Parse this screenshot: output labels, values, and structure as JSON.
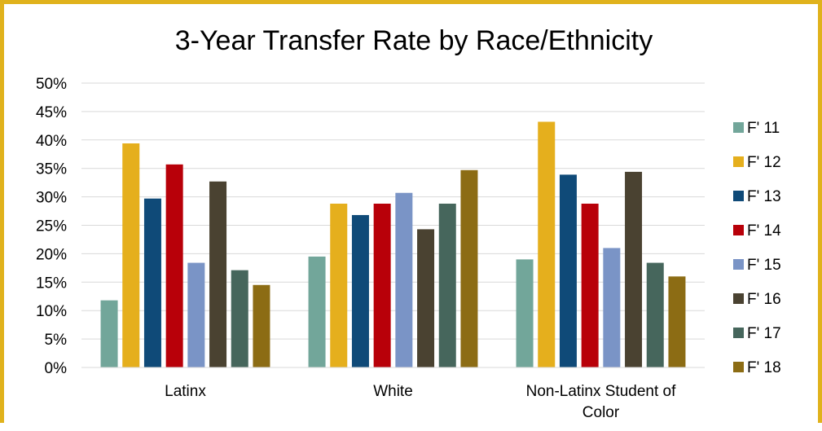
{
  "chart_data": {
    "type": "bar",
    "title": "3-Year Transfer Rate by Race/Ethnicity",
    "xlabel": "",
    "ylabel": "",
    "ylim": [
      0,
      0.5
    ],
    "yticks": [
      "0%",
      "5%",
      "10%",
      "15%",
      "20%",
      "25%",
      "30%",
      "35%",
      "40%",
      "45%",
      "50%"
    ],
    "grid": true,
    "legend_position": "right",
    "categories": [
      {
        "label_lines": [
          "Latinx"
        ]
      },
      {
        "label_lines": [
          "White"
        ]
      },
      {
        "label_lines": [
          "Non-Latinx Student of",
          "Color"
        ]
      }
    ],
    "series": [
      {
        "name": "F' 11",
        "color": "#72A69A",
        "values": [
          0.118,
          0.195,
          0.19
        ]
      },
      {
        "name": "F' 12",
        "color": "#E5AF1D",
        "values": [
          0.394,
          0.288,
          0.432
        ]
      },
      {
        "name": "F' 13",
        "color": "#0F4A78",
        "values": [
          0.297,
          0.268,
          0.339
        ]
      },
      {
        "name": "F' 14",
        "color": "#B80009",
        "values": [
          0.357,
          0.288,
          0.288
        ]
      },
      {
        "name": "F' 15",
        "color": "#7A94C6",
        "values": [
          0.184,
          0.307,
          0.21
        ]
      },
      {
        "name": "F' 16",
        "color": "#4A4231",
        "values": [
          0.327,
          0.243,
          0.344
        ]
      },
      {
        "name": "F' 17",
        "color": "#46665C",
        "values": [
          0.171,
          0.288,
          0.184
        ]
      },
      {
        "name": "F' 18",
        "color": "#8C6C14",
        "values": [
          0.145,
          0.347,
          0.16
        ]
      }
    ]
  }
}
